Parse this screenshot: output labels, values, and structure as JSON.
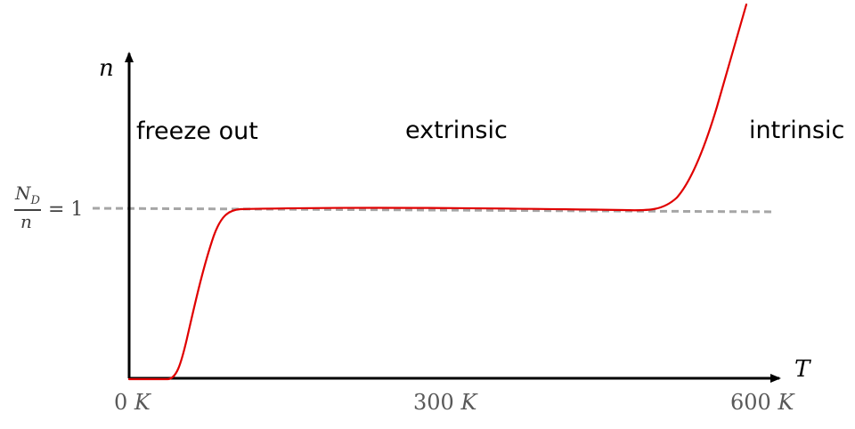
{
  "axes": {
    "y_variable": "n",
    "x_variable": "T"
  },
  "regions": {
    "freeze_out": "freeze out",
    "extrinsic": "extrinsic",
    "intrinsic": "intrinsic"
  },
  "ticks": {
    "t0": {
      "value": "0",
      "unit": "K"
    },
    "t300": {
      "value": "300",
      "unit": "K"
    },
    "t600": {
      "value": "600",
      "unit": "K"
    }
  },
  "reference_line": {
    "numerator": "N",
    "numerator_sub": "D",
    "denominator": "n",
    "equals": "= 1"
  },
  "colors": {
    "curve": "#e00000",
    "axes": "#000000",
    "reference_line": "#a6a6a6"
  }
}
